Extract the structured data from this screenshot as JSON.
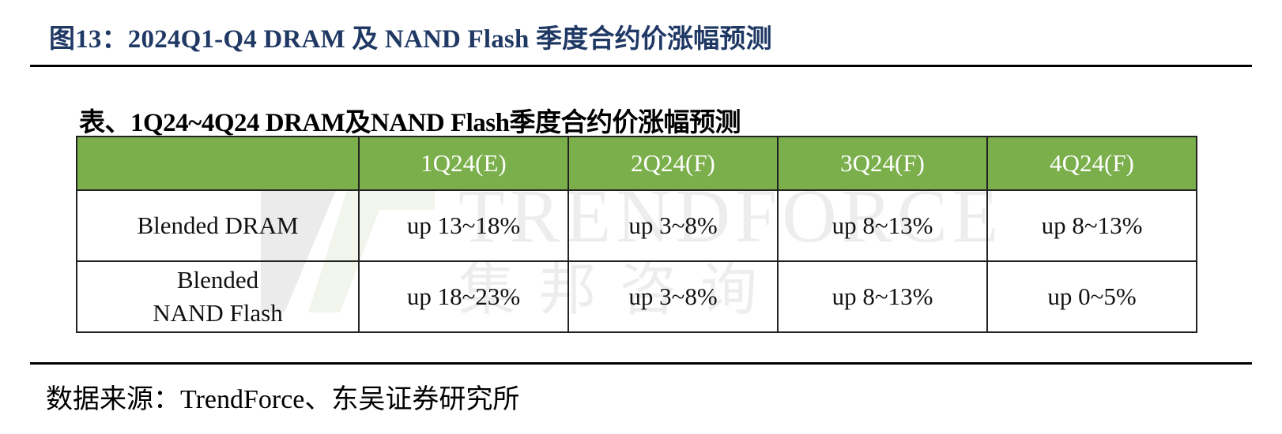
{
  "figure": {
    "title": "图13：2024Q1-Q4 DRAM 及 NAND Flash 季度合约价涨幅预测"
  },
  "table": {
    "caption": "表、1Q24~4Q24 DRAM及NAND Flash季度合约价涨幅预测",
    "header_color": "#70a83d",
    "columns": [
      "",
      "1Q24(E)",
      "2Q24(F)",
      "3Q24(F)",
      "4Q24(F)"
    ],
    "rows": [
      {
        "label_lines": [
          "Blended DRAM"
        ],
        "values": [
          "up 13~18%",
          "up 3~8%",
          "up 8~13%",
          "up 8~13%"
        ]
      },
      {
        "label_lines": [
          "Blended",
          "NAND Flash"
        ],
        "values": [
          "up 18~23%",
          "up 3~8%",
          "up 8~13%",
          "up 0~5%"
        ]
      }
    ]
  },
  "watermark": {
    "text_en": "TRENDFORCE",
    "text_cn": "集邦咨询"
  },
  "source": "数据来源：TrendForce、东吴证券研究所"
}
